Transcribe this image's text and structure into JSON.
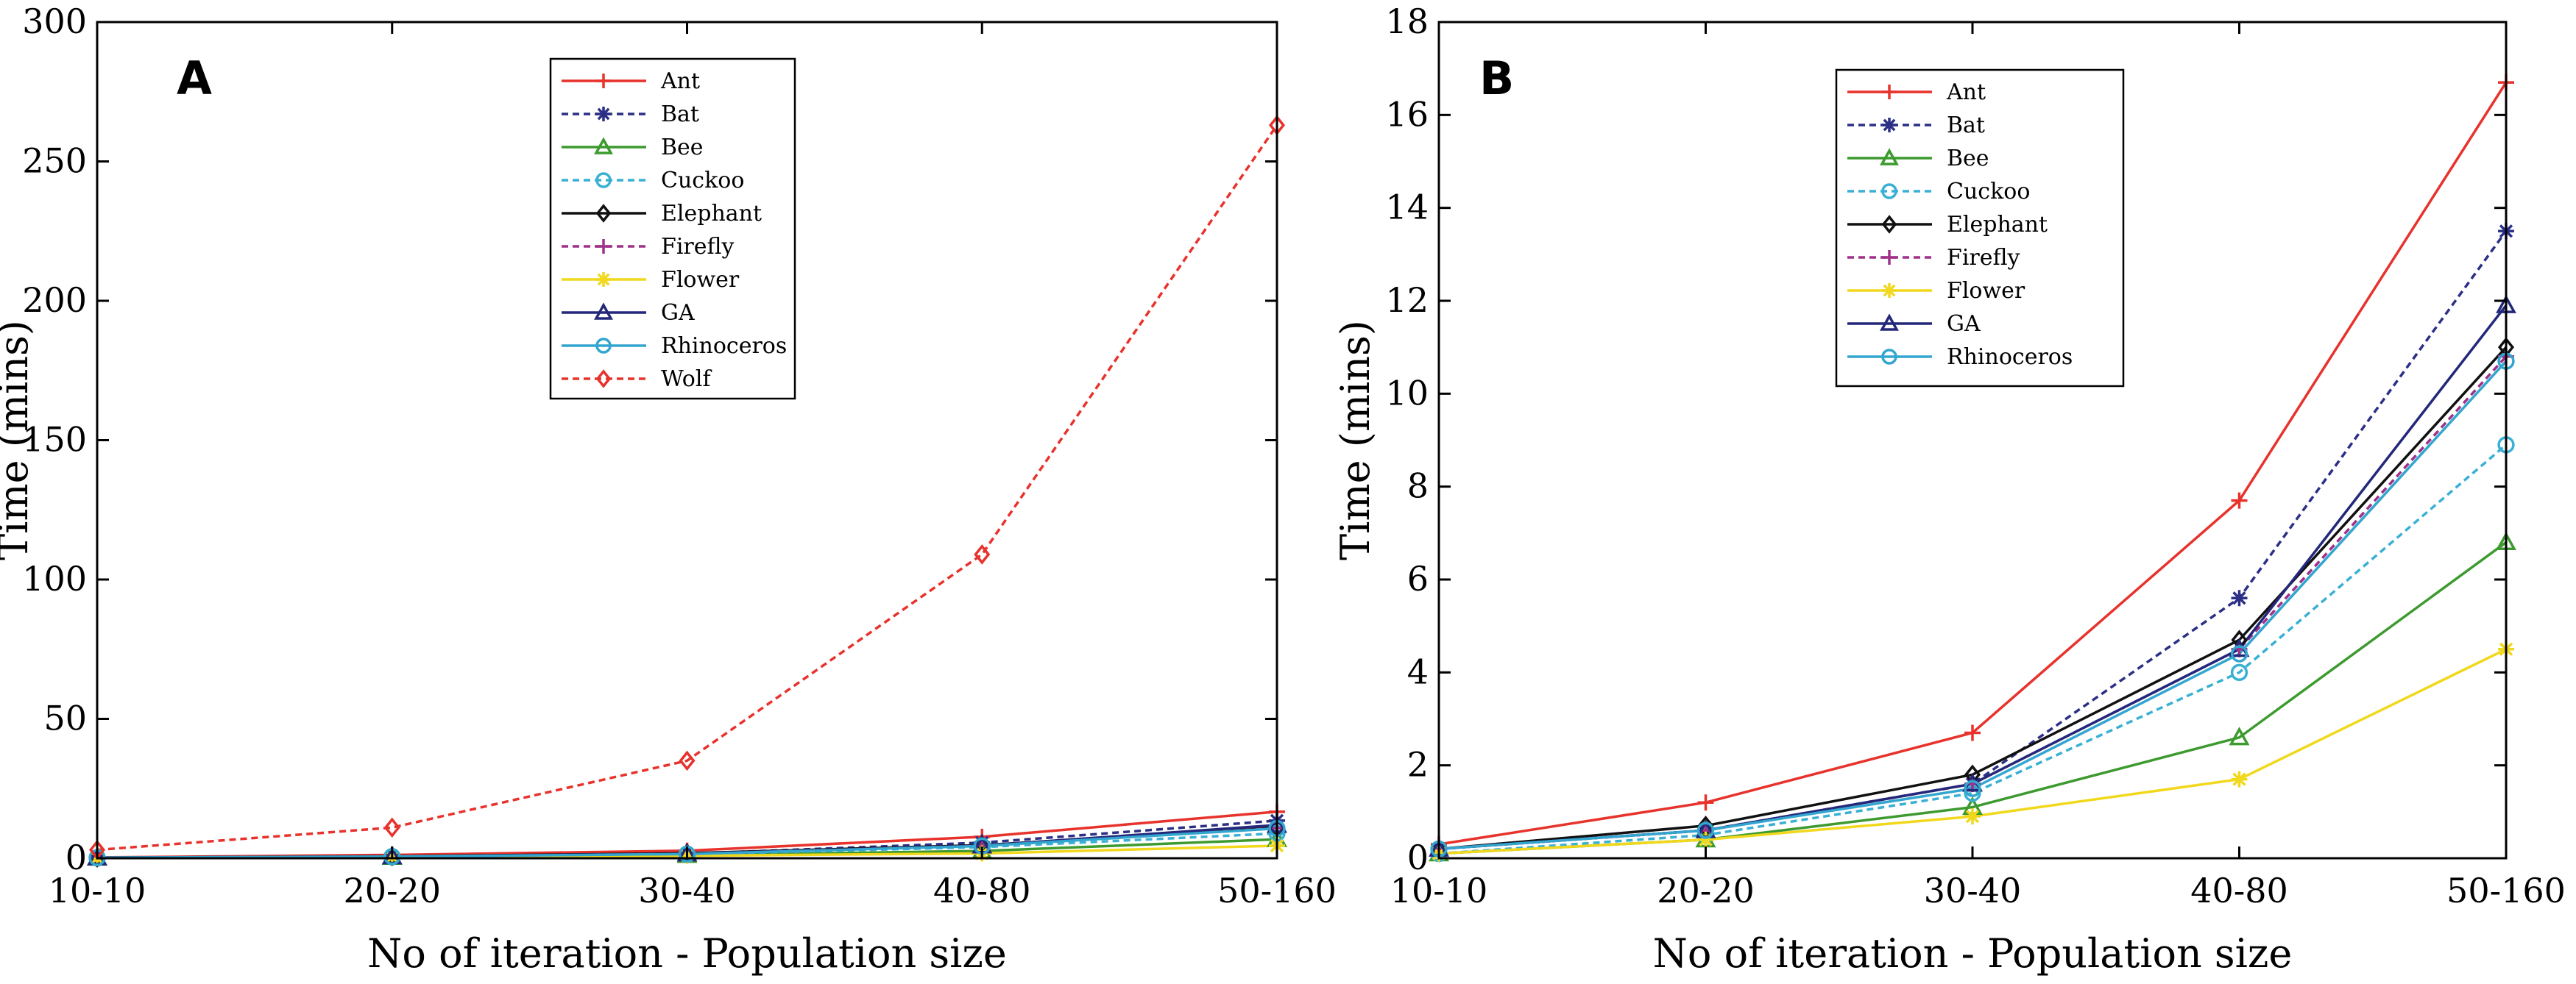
{
  "chart_data": [
    {
      "panel": "A",
      "type": "line",
      "categories": [
        "10-10",
        "20-20",
        "30-40",
        "40-80",
        "50-160"
      ],
      "xlabel": "No of iteration - Population size",
      "ylabel": "Time (mins)",
      "ylim": [
        0,
        300
      ],
      "yticks": [
        "0",
        "50",
        "100",
        "150",
        "200",
        "250",
        "300"
      ],
      "legend_position": "top-center",
      "series": [
        {
          "name": "Ant",
          "values": [
            0.3,
            1.2,
            2.7,
            7.7,
            16.7
          ],
          "color": "#e8322c",
          "dash": "solid",
          "marker": "plus"
        },
        {
          "name": "Bat",
          "values": [
            0.2,
            0.6,
            1.6,
            5.6,
            13.5
          ],
          "color": "#2b2f86",
          "dash": "dashed",
          "marker": "star"
        },
        {
          "name": "Bee",
          "values": [
            0.1,
            0.4,
            1.1,
            2.6,
            6.8
          ],
          "color": "#3d9a2f",
          "dash": "solid",
          "marker": "triangle"
        },
        {
          "name": "Cuckoo",
          "values": [
            0.1,
            0.5,
            1.4,
            4.0,
            8.9
          ],
          "color": "#39b0d4",
          "dash": "dashed",
          "marker": "circle"
        },
        {
          "name": "Elephant",
          "values": [
            0.2,
            0.7,
            1.8,
            4.7,
            11.0
          ],
          "color": "#111111",
          "dash": "solid",
          "marker": "diamond"
        },
        {
          "name": "Firefly",
          "values": [
            0.2,
            0.6,
            1.6,
            4.5,
            10.8
          ],
          "color": "#a0308a",
          "dash": "dashed",
          "marker": "plus"
        },
        {
          "name": "Flower",
          "values": [
            0.1,
            0.4,
            0.9,
            1.7,
            4.5
          ],
          "color": "#f1d81c",
          "dash": "solid",
          "marker": "star"
        },
        {
          "name": "GA",
          "values": [
            0.2,
            0.6,
            1.6,
            4.5,
            11.9
          ],
          "color": "#24287a",
          "dash": "solid",
          "marker": "triangle"
        },
        {
          "name": "Rhinoceros",
          "values": [
            0.2,
            0.6,
            1.5,
            4.4,
            10.7
          ],
          "color": "#33a6cf",
          "dash": "solid",
          "marker": "circle"
        },
        {
          "name": "Wolf",
          "values": [
            3.0,
            11.0,
            35.0,
            109.0,
            263.0
          ],
          "color": "#e8322c",
          "dash": "dashed",
          "marker": "diamond"
        }
      ]
    },
    {
      "panel": "B",
      "type": "line",
      "categories": [
        "10-10",
        "20-20",
        "30-40",
        "40-80",
        "50-160"
      ],
      "xlabel": "No of iteration - Population size",
      "ylabel": "Time (mins)",
      "ylim": [
        0,
        18
      ],
      "yticks": [
        "0",
        "2",
        "4",
        "6",
        "8",
        "10",
        "12",
        "14",
        "16",
        "18"
      ],
      "legend_position": "top-center",
      "series": [
        {
          "name": "Ant",
          "values": [
            0.3,
            1.2,
            2.7,
            7.7,
            16.7
          ],
          "color": "#e8322c",
          "dash": "solid",
          "marker": "plus"
        },
        {
          "name": "Bat",
          "values": [
            0.2,
            0.6,
            1.6,
            5.6,
            13.5
          ],
          "color": "#2b2f86",
          "dash": "dashed",
          "marker": "star"
        },
        {
          "name": "Bee",
          "values": [
            0.1,
            0.4,
            1.1,
            2.6,
            6.8
          ],
          "color": "#3d9a2f",
          "dash": "solid",
          "marker": "triangle"
        },
        {
          "name": "Cuckoo",
          "values": [
            0.1,
            0.5,
            1.4,
            4.0,
            8.9
          ],
          "color": "#39b0d4",
          "dash": "dashed",
          "marker": "circle"
        },
        {
          "name": "Elephant",
          "values": [
            0.2,
            0.7,
            1.8,
            4.7,
            11.0
          ],
          "color": "#111111",
          "dash": "solid",
          "marker": "diamond"
        },
        {
          "name": "Firefly",
          "values": [
            0.2,
            0.6,
            1.6,
            4.5,
            10.8
          ],
          "color": "#a0308a",
          "dash": "dashed",
          "marker": "plus"
        },
        {
          "name": "Flower",
          "values": [
            0.1,
            0.4,
            0.9,
            1.7,
            4.5
          ],
          "color": "#f1d81c",
          "dash": "solid",
          "marker": "star"
        },
        {
          "name": "GA",
          "values": [
            0.2,
            0.6,
            1.6,
            4.5,
            11.9
          ],
          "color": "#24287a",
          "dash": "solid",
          "marker": "triangle"
        },
        {
          "name": "Rhinoceros",
          "values": [
            0.2,
            0.6,
            1.5,
            4.4,
            10.7
          ],
          "color": "#33a6cf",
          "dash": "solid",
          "marker": "circle"
        }
      ]
    }
  ]
}
